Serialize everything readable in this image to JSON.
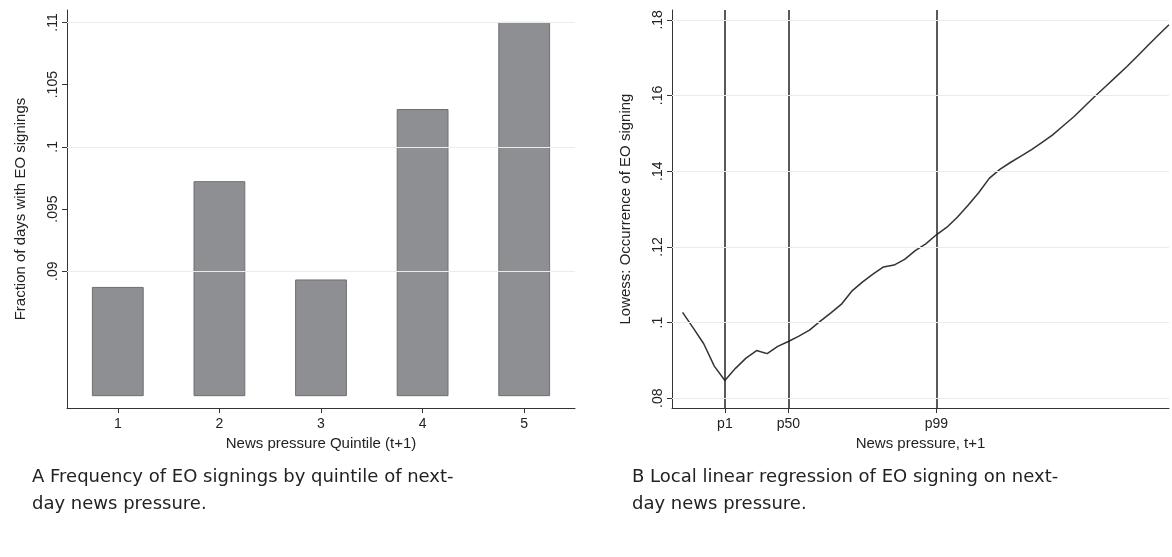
{
  "chart_data": [
    {
      "type": "bar",
      "categories": [
        "1",
        "2",
        "3",
        "4",
        "5"
      ],
      "values": [
        0.0087,
        0.0172,
        0.0093,
        0.023,
        0.03
      ],
      "base": [
        0.08,
        0.08,
        0.08,
        0.08,
        0.08
      ],
      "color": "#8e8f92",
      "xlabel": "News pressure Quintile (t+1)",
      "ylabel": "Fraction of days with EO signings",
      "ylim": [
        0.079,
        0.111
      ],
      "yticks": [
        {
          "value": 0.09,
          "label": ".09"
        },
        {
          "value": 0.095,
          "label": ".095"
        },
        {
          "value": 0.1,
          "label": ".1"
        },
        {
          "value": 0.105,
          "label": ".105"
        },
        {
          "value": 0.11,
          "label": ".11"
        }
      ],
      "grid": "y",
      "annotations": [
        "A Frequency of EO signings by quintile of next-day news pressure."
      ]
    },
    {
      "type": "line",
      "categories": [
        null,
        null,
        null,
        null,
        null,
        "p1",
        null,
        null,
        null,
        null,
        null,
        "p50",
        null,
        null,
        null,
        null,
        null,
        null,
        null,
        null,
        null,
        null,
        null,
        null,
        null,
        "p99",
        null,
        null,
        null,
        null,
        null,
        null,
        null,
        null,
        null,
        null,
        null,
        null,
        null,
        null,
        null,
        null,
        null,
        null,
        null,
        null,
        null,
        null
      ],
      "values": [
        null,
        0.1027,
        0.0986,
        0.0944,
        0.0885,
        0.0847,
        0.0879,
        0.0906,
        0.0926,
        0.0918,
        0.0937,
        0.095,
        0.0964,
        0.098,
        0.1003,
        0.1025,
        0.1048,
        0.1083,
        0.1107,
        0.1128,
        0.1147,
        0.1152,
        0.1167,
        0.119,
        0.1208,
        0.1232,
        0.1252,
        0.1279,
        0.131,
        0.1343,
        0.1381,
        0.1405,
        0.1423,
        0.144,
        0.1457,
        0.1476,
        0.1496,
        0.152,
        0.1544,
        0.1571,
        0.1598,
        0.1624,
        0.165,
        0.1676,
        0.1704,
        0.1732,
        0.176,
        0.1787
      ],
      "color": "#333333",
      "marker": "none",
      "xlabel": "News pressure, t+1",
      "ylabel": "Lowess: Occurrence of EO signing",
      "ylim": [
        0.0774,
        0.1826
      ],
      "yticks": [
        {
          "value": 0.08,
          "label": ".08"
        },
        {
          "value": 0.1,
          "label": ".1"
        },
        {
          "value": 0.12,
          "label": ".12"
        },
        {
          "value": 0.14,
          "label": ".14"
        },
        {
          "value": 0.16,
          "label": ".16"
        },
        {
          "value": 0.18,
          "label": ".18"
        }
      ],
      "ref_lines": [
        {
          "axis": "x",
          "value": "p1",
          "color": "#222222"
        },
        {
          "axis": "x",
          "value": "p50",
          "color": "#222222"
        },
        {
          "axis": "x",
          "value": "p99",
          "color": "#222222"
        }
      ],
      "grid": "y",
      "annotations": [
        "B Local linear regression of EO signing on next-day news pressure."
      ]
    }
  ]
}
